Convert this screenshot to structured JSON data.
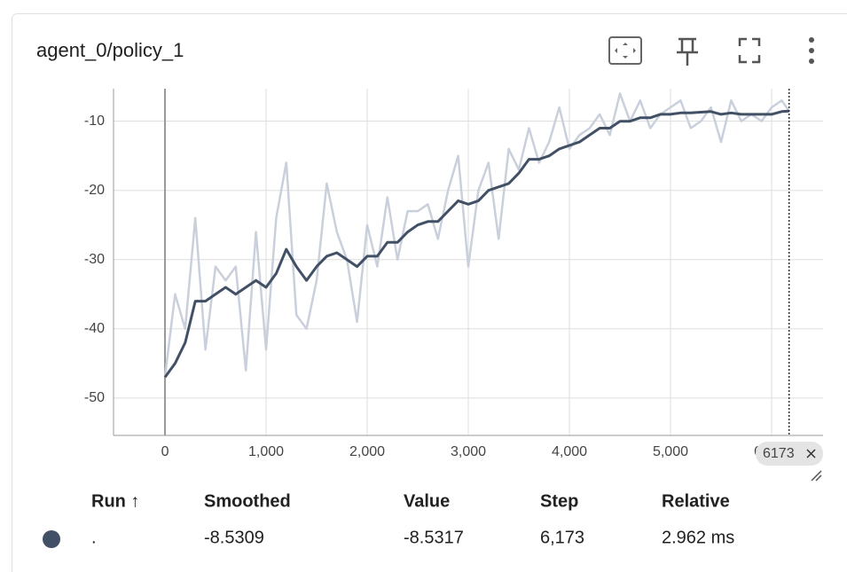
{
  "card_title": "agent_0/policy_1",
  "chart_data": {
    "type": "line",
    "x": [
      0,
      100,
      200,
      300,
      400,
      500,
      600,
      700,
      800,
      900,
      1000,
      1100,
      1200,
      1300,
      1400,
      1500,
      1600,
      1700,
      1800,
      1900,
      2000,
      2100,
      2200,
      2300,
      2400,
      2500,
      2600,
      2700,
      2800,
      2900,
      3000,
      3100,
      3200,
      3300,
      3400,
      3500,
      3600,
      3700,
      3800,
      3900,
      4000,
      4100,
      4200,
      4300,
      4400,
      4500,
      4600,
      4700,
      4800,
      4900,
      5000,
      5100,
      5200,
      5300,
      5400,
      5500,
      5600,
      5700,
      5800,
      5900,
      6000,
      6100,
      6173
    ],
    "series": [
      {
        "color": "#c9d0dc",
        "values": [
          -47,
          -35,
          -40,
          -24,
          -43,
          -31,
          -33,
          -31,
          -46,
          -26,
          -43,
          -24,
          -16,
          -38,
          -40,
          -33,
          -19,
          -26,
          -30,
          -39,
          -25,
          -31,
          -21,
          -30,
          -23,
          -23,
          -22,
          -27,
          -20,
          -15,
          -31,
          -20,
          -16,
          -27,
          -14,
          -17,
          -11,
          -16,
          -13,
          -8,
          -14,
          -12,
          -11,
          -9,
          -12,
          -6,
          -10,
          -7,
          -11,
          -9,
          -8,
          -7,
          -11,
          -10,
          -8,
          -13,
          -7,
          -10,
          -9,
          -10,
          -8,
          -7,
          -8.5317
        ]
      },
      {
        "color": "#425066",
        "values": [
          -47,
          -45,
          -42,
          -36,
          -36,
          -35,
          -34,
          -35,
          -34,
          -33,
          -34,
          -32,
          -28.5,
          -31,
          -33,
          -31,
          -29.5,
          -29,
          -30,
          -31,
          -29.5,
          -29.5,
          -27.5,
          -27.5,
          -26,
          -25,
          -24.5,
          -24.5,
          -23,
          -21.5,
          -22,
          -21.5,
          -20,
          -19.5,
          -19,
          -17.5,
          -15.5,
          -15.5,
          -15,
          -14,
          -13.5,
          -13,
          -12,
          -11,
          -11,
          -10,
          -10,
          -9.5,
          -9.5,
          -9,
          -9,
          -8.8,
          -8.8,
          -8.7,
          -8.6,
          -9,
          -8.8,
          -9,
          -9,
          -9,
          -9,
          -8.6,
          -8.5309
        ]
      }
    ],
    "xlim": [
      -509,
      6509
    ],
    "ylim": [
      -55.4,
      -5.3
    ],
    "xticks": [
      0,
      {
        "value": 1000,
        "label": "1,000"
      },
      {
        "value": 2000,
        "label": "2,000"
      },
      {
        "value": 3000,
        "label": "3,000"
      },
      {
        "value": 4000,
        "label": "4,000"
      },
      {
        "value": 5000,
        "label": "5,000"
      },
      {
        "value": 6000,
        "label": "6,000"
      }
    ],
    "yticks": [
      -50,
      -40,
      -30,
      -20,
      -10
    ],
    "grid": true,
    "cursor_x": 6173
  },
  "table": {
    "headers": [
      "Run ↑",
      "Smoothed",
      "Value",
      "Step",
      "Relative"
    ],
    "rows": [
      [
        ".",
        "-8.5309",
        "-8.5317",
        "6,173",
        "2.962 ms"
      ]
    ]
  }
}
